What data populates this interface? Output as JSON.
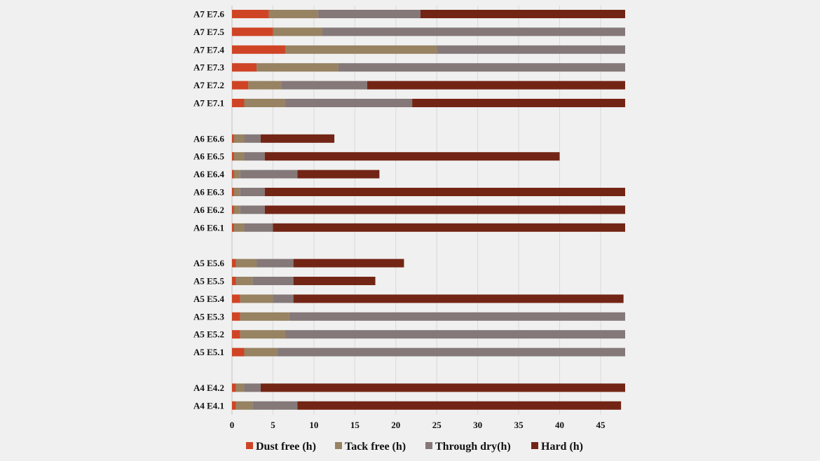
{
  "chart_data": {
    "type": "bar",
    "orientation": "horizontal",
    "stacked": true,
    "title": "",
    "xlabel": "",
    "ylabel": "",
    "xlim": [
      0,
      48
    ],
    "xticks": [
      0,
      5,
      10,
      15,
      20,
      25,
      30,
      35,
      40,
      45
    ],
    "grid": "vertical",
    "legend_position": "bottom",
    "categories": [
      "A7 E7.6",
      "A7 E7.5",
      "A7 E7.4",
      "A7 E7.3",
      "A7 E7.2",
      "A7 E7.1",
      "A6 E6.6",
      "A6 E6.5",
      "A6 E6.4",
      "A6 E6.3",
      "A6 E6.2",
      "A6 E6.1",
      "A5 E5.6",
      "A5 E5.5",
      "A5 E5.4",
      "A5 E5.3",
      "A5 E5.2",
      "A5 E5.1",
      "A4 E4.2",
      "A4 E4.1"
    ],
    "series": [
      {
        "name": "Dust free (h)",
        "color": "#cf4425",
        "values": [
          4.5,
          5,
          6.5,
          3,
          2,
          1.5,
          0.25,
          0.25,
          0.25,
          0.25,
          0.25,
          0.25,
          0.5,
          0.5,
          1,
          1,
          1,
          1.5,
          0.5,
          0.5
        ]
      },
      {
        "name": "Tack free (h)",
        "color": "#978262",
        "values": [
          6,
          6,
          18.5,
          10,
          4,
          5,
          1.25,
          1.25,
          0.75,
          0.75,
          0.75,
          1.25,
          2.5,
          2,
          4,
          6,
          5.5,
          4,
          1,
          2
        ]
      },
      {
        "name": "Through dry(h)",
        "color": "#857878",
        "values": [
          12.5,
          37,
          23,
          35,
          10.5,
          15.5,
          2,
          2.5,
          7,
          3,
          3,
          3.5,
          4.5,
          5,
          2.5,
          41,
          41.5,
          42.5,
          2,
          5.5
        ]
      },
      {
        "name": "Hard (h)",
        "color": "#732515",
        "values": [
          25,
          0,
          0,
          0,
          31.5,
          26,
          9,
          36,
          10,
          44,
          44,
          43,
          13.5,
          10,
          40.3,
          0,
          0,
          0,
          44.5,
          39.5
        ]
      }
    ]
  }
}
